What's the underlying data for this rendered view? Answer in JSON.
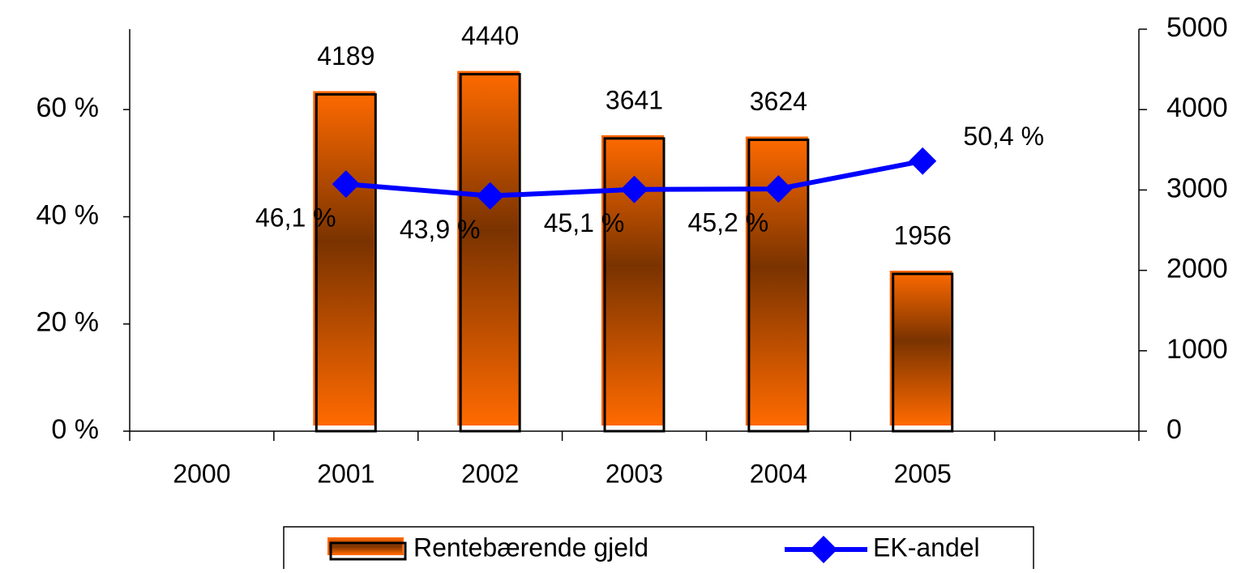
{
  "chart_data": {
    "type": "bar_line",
    "categories": [
      "2000",
      "2001",
      "2002",
      "2003",
      "2004",
      "2005",
      null
    ],
    "series": [
      {
        "name": "Rentebærende gjeld",
        "type": "bar",
        "axis": "y2",
        "color": "#ff6600",
        "values": [
          null,
          4189,
          4440,
          3641,
          3624,
          1956,
          null
        ]
      },
      {
        "name": "EK-andel",
        "type": "line",
        "axis": "y",
        "color": "#0000ff",
        "values": [
          null,
          46.1,
          43.9,
          45.1,
          45.2,
          50.4,
          null
        ],
        "value_labels": [
          null,
          "46,1 %",
          "43,9 %",
          "45,1 %",
          "45,2 %",
          "50,4 %",
          null
        ]
      }
    ],
    "ylim": [
      0,
      75
    ],
    "yticks": [
      {
        "value": 0,
        "label": "0 %"
      },
      {
        "value": 20,
        "label": "20 %"
      },
      {
        "value": 40,
        "label": "40 %"
      },
      {
        "value": 60,
        "label": "60 %"
      }
    ],
    "y2lim": [
      0,
      5000
    ],
    "y2ticks": [
      0,
      1000,
      2000,
      3000,
      4000,
      5000
    ],
    "legend": "bottom"
  }
}
